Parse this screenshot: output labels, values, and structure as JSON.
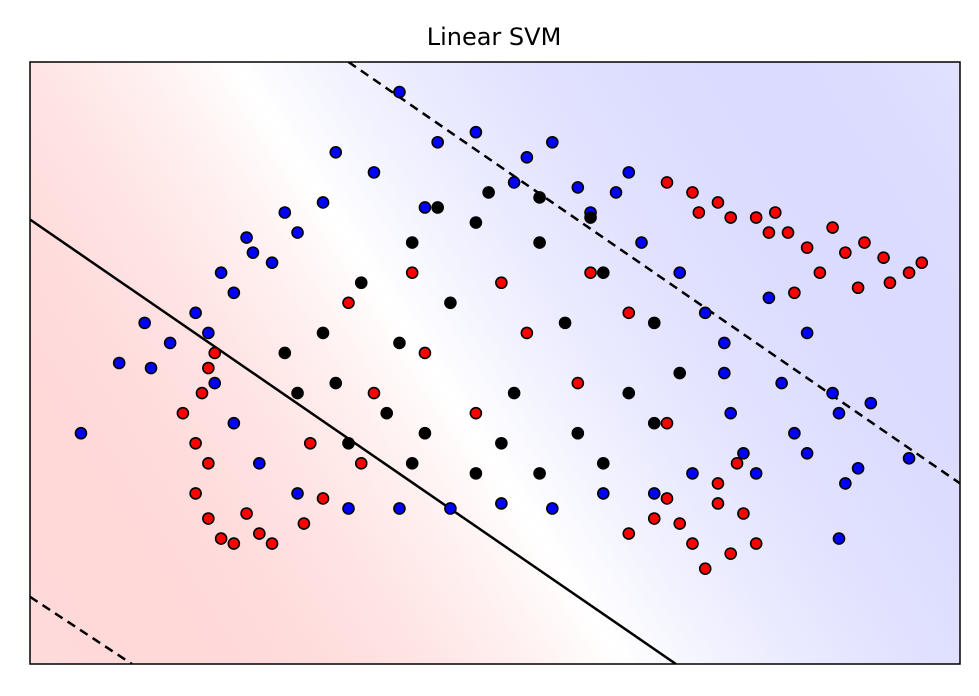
{
  "chart_data": {
    "type": "scatter",
    "title": "Linear SVM",
    "xlabel": "",
    "ylabel": "",
    "xlim": [
      -3.5,
      3.8
    ],
    "ylim": [
      -3.0,
      3.0
    ],
    "ticks_visible": false,
    "grid": false,
    "legend": "none",
    "background": {
      "type": "decision-function-gradient",
      "colors": {
        "negative": "#ff9a9a",
        "zero": "#ffffff",
        "positive": "#9a9aff"
      }
    },
    "decision_boundary": {
      "style": "solid",
      "color": "#000000",
      "points": [
        [
          -3.5,
          1.43
        ],
        [
          1.57,
          -3.0
        ]
      ]
    },
    "margins": [
      {
        "style": "dashed",
        "color": "#000000",
        "points": [
          [
            -1.0,
            3.0
          ],
          [
            3.8,
            -1.2
          ]
        ]
      },
      {
        "style": "dashed",
        "color": "#000000",
        "points": [
          [
            -3.5,
            -2.33
          ],
          [
            -2.7,
            -3.0
          ]
        ]
      }
    ],
    "series": [
      {
        "color": "#0000ff",
        "edgecolor": "#000000",
        "points": [
          [
            -0.6,
            2.7
          ],
          [
            0.6,
            2.2
          ],
          [
            0.8,
            1.75
          ],
          [
            1.2,
            1.9
          ],
          [
            2.3,
            0.65
          ],
          [
            2.6,
            0.3
          ],
          [
            -3.1,
            -0.7
          ],
          [
            -2.8,
            0.0
          ],
          [
            -2.6,
            0.4
          ],
          [
            -2.4,
            0.2
          ],
          [
            -2.2,
            0.5
          ],
          [
            -2.55,
            -0.05
          ],
          [
            2.8,
            -0.3
          ],
          [
            2.85,
            -0.5
          ],
          [
            2.9,
            -1.2
          ],
          [
            3.0,
            -1.05
          ],
          [
            3.1,
            -0.4
          ],
          [
            2.85,
            -1.75
          ],
          [
            3.4,
            -0.95
          ],
          [
            -1.1,
            2.1
          ],
          [
            -0.4,
            1.55
          ],
          [
            0.3,
            1.8
          ],
          [
            -1.75,
            1.1
          ],
          [
            1.95,
            0.2
          ],
          [
            -1.5,
            1.5
          ],
          [
            -1.2,
            1.6
          ],
          [
            -0.8,
            1.9
          ],
          [
            -0.3,
            2.2
          ],
          [
            0.0,
            2.3
          ],
          [
            0.4,
            2.05
          ],
          [
            0.9,
            1.5
          ],
          [
            1.3,
            1.2
          ],
          [
            1.6,
            0.9
          ],
          [
            1.8,
            0.5
          ],
          [
            1.95,
            -0.1
          ],
          [
            2.0,
            -0.5
          ],
          [
            2.1,
            -0.9
          ],
          [
            2.2,
            -1.1
          ],
          [
            1.7,
            -1.1
          ],
          [
            1.4,
            -1.3
          ],
          [
            1.0,
            -1.3
          ],
          [
            0.6,
            -1.45
          ],
          [
            0.2,
            -1.4
          ],
          [
            -0.2,
            -1.45
          ],
          [
            -0.6,
            -1.45
          ],
          [
            -1.0,
            -1.45
          ],
          [
            -1.4,
            -1.3
          ],
          [
            -1.7,
            -1.0
          ],
          [
            -1.9,
            -0.6
          ],
          [
            -2.05,
            -0.2
          ],
          [
            -2.1,
            0.3
          ],
          [
            -1.9,
            0.7
          ],
          [
            -1.6,
            1.0
          ],
          [
            -1.4,
            1.3
          ],
          [
            2.4,
            -0.2
          ],
          [
            2.5,
            -0.7
          ],
          [
            2.6,
            -0.9
          ],
          [
            -2.0,
            0.9
          ],
          [
            -1.8,
            1.25
          ],
          [
            1.1,
            1.7
          ]
        ]
      },
      {
        "color": "#ff0000",
        "edgecolor": "#000000",
        "points": [
          [
            -2.2,
            -1.3
          ],
          [
            -2.1,
            -1.55
          ],
          [
            -2.0,
            -1.75
          ],
          [
            -1.9,
            -1.8
          ],
          [
            -1.7,
            -1.7
          ],
          [
            -1.8,
            -1.5
          ],
          [
            -2.3,
            -0.5
          ],
          [
            -2.2,
            -0.8
          ],
          [
            -2.1,
            -1.0
          ],
          [
            -2.15,
            -0.3
          ],
          [
            -2.05,
            0.1
          ],
          [
            -2.1,
            -0.05
          ],
          [
            1.5,
            1.8
          ],
          [
            1.7,
            1.7
          ],
          [
            1.9,
            1.6
          ],
          [
            2.0,
            1.45
          ],
          [
            2.2,
            1.45
          ],
          [
            2.3,
            1.3
          ],
          [
            2.45,
            1.3
          ],
          [
            2.6,
            1.15
          ],
          [
            2.8,
            1.35
          ],
          [
            2.9,
            1.1
          ],
          [
            3.05,
            1.2
          ],
          [
            3.2,
            1.05
          ],
          [
            3.25,
            0.8
          ],
          [
            3.4,
            0.9
          ],
          [
            3.5,
            1.0
          ],
          [
            3.0,
            0.75
          ],
          [
            2.7,
            0.9
          ],
          [
            2.5,
            0.7
          ],
          [
            1.6,
            -1.6
          ],
          [
            1.7,
            -1.8
          ],
          [
            1.8,
            -2.05
          ],
          [
            2.0,
            -1.9
          ],
          [
            2.2,
            -1.8
          ],
          [
            1.4,
            -1.55
          ],
          [
            1.2,
            -1.7
          ],
          [
            2.1,
            -1.5
          ],
          [
            1.9,
            -1.4
          ],
          [
            1.5,
            -1.35
          ],
          [
            -1.6,
            -1.8
          ],
          [
            -1.35,
            -1.6
          ],
          [
            -1.2,
            -1.35
          ],
          [
            -0.8,
            -0.3
          ],
          [
            -0.4,
            0.1
          ],
          [
            0.0,
            -0.5
          ],
          [
            0.4,
            0.3
          ],
          [
            0.8,
            -0.2
          ],
          [
            1.2,
            0.5
          ],
          [
            -1.0,
            0.6
          ],
          [
            -0.5,
            0.9
          ],
          [
            0.2,
            0.8
          ],
          [
            0.9,
            0.9
          ],
          [
            1.5,
            -0.6
          ],
          [
            -1.3,
            -0.8
          ],
          [
            -0.9,
            -1.0
          ],
          [
            1.9,
            -1.2
          ],
          [
            2.05,
            -1.0
          ],
          [
            1.75,
            1.5
          ],
          [
            2.35,
            1.5
          ]
        ]
      },
      {
        "color": "#000000",
        "edgecolor": "#000000",
        "points": [
          [
            -1.2,
            0.3
          ],
          [
            -0.9,
            0.8
          ],
          [
            -0.5,
            1.2
          ],
          [
            0.0,
            1.4
          ],
          [
            0.5,
            1.2
          ],
          [
            1.0,
            0.9
          ],
          [
            1.4,
            0.4
          ],
          [
            1.6,
            -0.1
          ],
          [
            1.4,
            -0.6
          ],
          [
            1.0,
            -1.0
          ],
          [
            0.5,
            -1.1
          ],
          [
            0.0,
            -1.1
          ],
          [
            -0.5,
            -1.0
          ],
          [
            -1.0,
            -0.8
          ],
          [
            -1.4,
            -0.3
          ],
          [
            -1.5,
            0.1
          ],
          [
            -0.6,
            0.2
          ],
          [
            0.3,
            -0.3
          ],
          [
            0.7,
            0.4
          ],
          [
            -0.2,
            0.6
          ],
          [
            0.1,
            1.7
          ],
          [
            0.5,
            1.65
          ],
          [
            -0.3,
            1.55
          ],
          [
            0.9,
            1.45
          ],
          [
            -0.7,
            -0.5
          ],
          [
            0.2,
            -0.8
          ],
          [
            0.8,
            -0.7
          ],
          [
            -1.1,
            -0.2
          ],
          [
            1.2,
            -0.3
          ],
          [
            -0.4,
            -0.7
          ]
        ]
      }
    ]
  }
}
